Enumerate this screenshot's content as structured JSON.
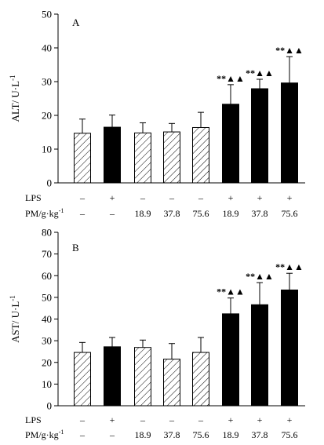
{
  "chart_data": [
    {
      "type": "bar",
      "panel_label": "A",
      "ylabel": "ALT/ U·L",
      "ylabel_sup": "-1",
      "ylim": [
        0,
        50
      ],
      "yticks": [
        0,
        10,
        20,
        30,
        40,
        50
      ],
      "values": [
        14.7,
        16.5,
        14.8,
        15.1,
        16.4,
        23.3,
        27.9,
        29.6
      ],
      "errors": [
        4.2,
        3.6,
        3.0,
        2.5,
        4.5,
        5.8,
        2.8,
        7.8
      ],
      "fills": [
        "hatched",
        "black",
        "hatched",
        "hatched",
        "hatched",
        "black",
        "black",
        "black"
      ],
      "significance": [
        "",
        "",
        "",
        "",
        "",
        "**▲▲",
        "**▲▲",
        "**▲▲"
      ],
      "conditions": {
        "lps_label": "LPS",
        "lps": [
          "–",
          "+",
          "–",
          "–",
          "–",
          "+",
          "+",
          "+"
        ],
        "pm_label": "PM/g·kg",
        "pm_sup": "-1",
        "pm": [
          "–",
          "–",
          "18.9",
          "37.8",
          "75.6",
          "18.9",
          "37.8",
          "75.6"
        ]
      }
    },
    {
      "type": "bar",
      "panel_label": "B",
      "ylabel": "AST/ U·L",
      "ylabel_sup": "-1",
      "ylim": [
        0,
        80
      ],
      "yticks": [
        0,
        10,
        20,
        30,
        40,
        50,
        60,
        70,
        80
      ],
      "values": [
        24.6,
        27.2,
        26.9,
        21.5,
        24.6,
        42.4,
        46.6,
        53.4
      ],
      "errors": [
        4.6,
        4.3,
        3.4,
        7.2,
        6.9,
        7.3,
        10.2,
        7.7
      ],
      "fills": [
        "hatched",
        "black",
        "hatched",
        "hatched",
        "hatched",
        "black",
        "black",
        "black"
      ],
      "significance": [
        "",
        "",
        "",
        "",
        "",
        "**▲▲",
        "**▲▲",
        "**▲▲"
      ],
      "conditions": {
        "lps_label": "LPS",
        "lps": [
          "–",
          "+",
          "–",
          "–",
          "–",
          "+",
          "+",
          "+"
        ],
        "pm_label": "PM/g·kg",
        "pm_sup": "-1",
        "pm": [
          "–",
          "–",
          "18.9",
          "37.8",
          "75.6",
          "18.9",
          "37.8",
          "75.6"
        ]
      }
    }
  ]
}
